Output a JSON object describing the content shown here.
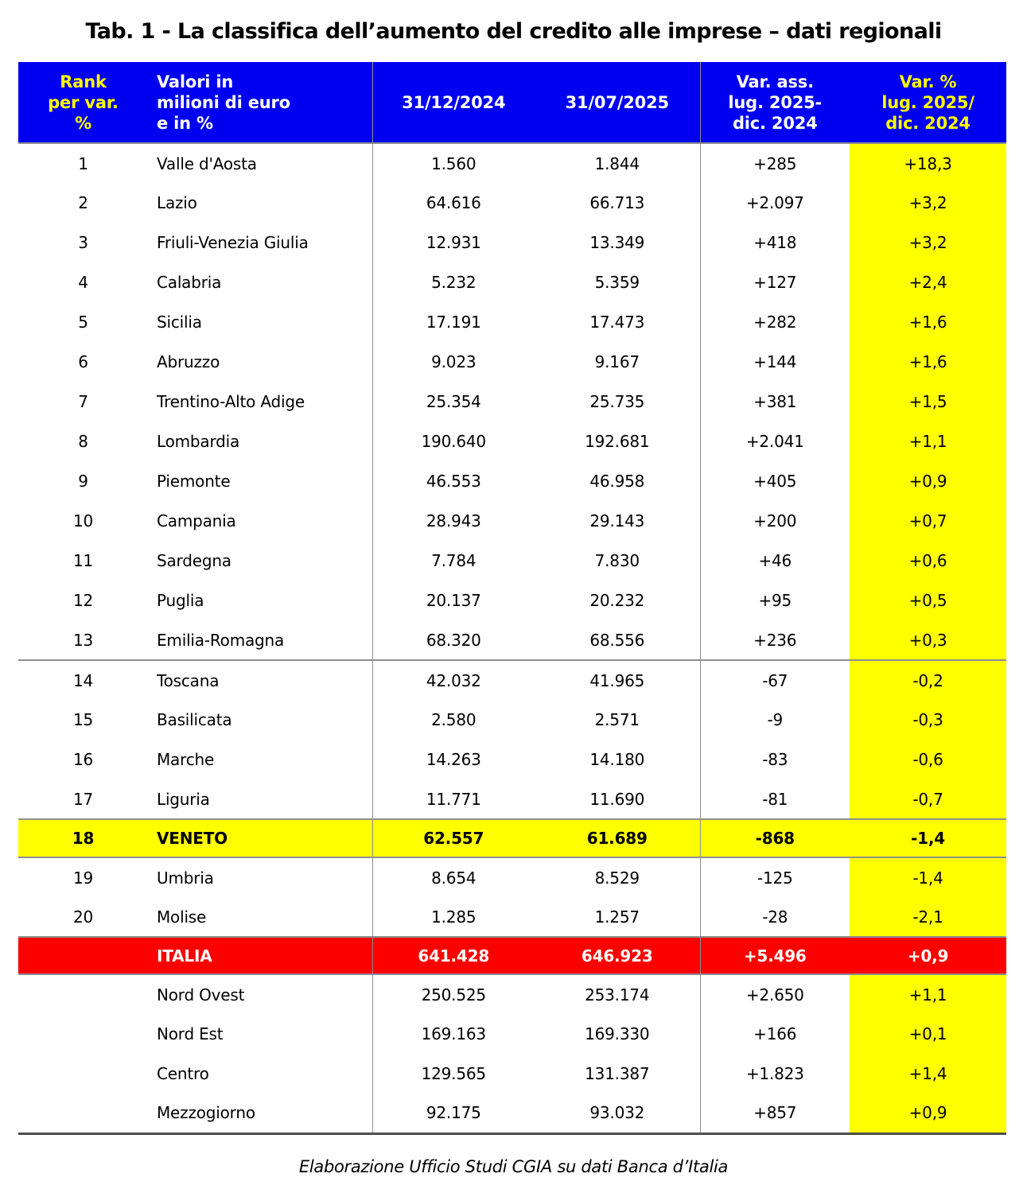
{
  "page": {
    "title": "Tab. 1 - La classifica dell’aumento del credito alle imprese – dati regionali",
    "source_note": "Elaborazione Ufficio Studi CGIA su dati Banca d’Italia"
  },
  "colors": {
    "header_blue": "#0000F0",
    "header_text_white": "#FFFFFF",
    "header_accent_yellow": "#FFFF00",
    "highlight_yellow": "#FFFF00",
    "total_red": "#FC0000",
    "border_gray": "#8F8F8F",
    "text_black": "#000000"
  },
  "table": {
    "header": {
      "rank_lines": [
        "Rank",
        "per var.",
        "%"
      ],
      "values_lines": [
        "Valori in",
        "milioni di euro",
        "e in %"
      ],
      "date1": "31/12/2024",
      "date2": "31/07/2025",
      "var_abs_lines": [
        "Var. ass.",
        "lug. 2025-",
        "dic. 2024"
      ],
      "var_pct_lines": [
        "Var. %",
        "lug. 2025/",
        "dic. 2024"
      ]
    }
  },
  "chart_data": {
    "type": "table",
    "title": "Tab. 1 - La classifica dell’aumento del credito alle imprese – dati regionali",
    "columns": [
      "Rank per var. %",
      "Valori in milioni di euro e in %",
      "31/12/2024",
      "31/07/2025",
      "Var. ass. lug. 2025-dic. 2024",
      "Var. % lug. 2025/dic. 2024"
    ],
    "rows": [
      {
        "rank": "1",
        "label": "Valle d'Aosta",
        "dec_2024": "1.560",
        "jul_2025": "1.844",
        "var_abs": "+285",
        "var_pct": "+18,3",
        "group": "region-positive"
      },
      {
        "rank": "2",
        "label": "Lazio",
        "dec_2024": "64.616",
        "jul_2025": "66.713",
        "var_abs": "+2.097",
        "var_pct": "+3,2",
        "group": "region-positive"
      },
      {
        "rank": "3",
        "label": "Friuli-Venezia Giulia",
        "dec_2024": "12.931",
        "jul_2025": "13.349",
        "var_abs": "+418",
        "var_pct": "+3,2",
        "group": "region-positive"
      },
      {
        "rank": "4",
        "label": "Calabria",
        "dec_2024": "5.232",
        "jul_2025": "5.359",
        "var_abs": "+127",
        "var_pct": "+2,4",
        "group": "region-positive"
      },
      {
        "rank": "5",
        "label": "Sicilia",
        "dec_2024": "17.191",
        "jul_2025": "17.473",
        "var_abs": "+282",
        "var_pct": "+1,6",
        "group": "region-positive"
      },
      {
        "rank": "6",
        "label": "Abruzzo",
        "dec_2024": "9.023",
        "jul_2025": "9.167",
        "var_abs": "+144",
        "var_pct": "+1,6",
        "group": "region-positive"
      },
      {
        "rank": "7",
        "label": "Trentino-Alto Adige",
        "dec_2024": "25.354",
        "jul_2025": "25.735",
        "var_abs": "+381",
        "var_pct": "+1,5",
        "group": "region-positive"
      },
      {
        "rank": "8",
        "label": "Lombardia",
        "dec_2024": "190.640",
        "jul_2025": "192.681",
        "var_abs": "+2.041",
        "var_pct": "+1,1",
        "group": "region-positive"
      },
      {
        "rank": "9",
        "label": "Piemonte",
        "dec_2024": "46.553",
        "jul_2025": "46.958",
        "var_abs": "+405",
        "var_pct": "+0,9",
        "group": "region-positive"
      },
      {
        "rank": "10",
        "label": "Campania",
        "dec_2024": "28.943",
        "jul_2025": "29.143",
        "var_abs": "+200",
        "var_pct": "+0,7",
        "group": "region-positive"
      },
      {
        "rank": "11",
        "label": "Sardegna",
        "dec_2024": "7.784",
        "jul_2025": "7.830",
        "var_abs": "+46",
        "var_pct": "+0,6",
        "group": "region-positive"
      },
      {
        "rank": "12",
        "label": "Puglia",
        "dec_2024": "20.137",
        "jul_2025": "20.232",
        "var_abs": "+95",
        "var_pct": "+0,5",
        "group": "region-positive"
      },
      {
        "rank": "13",
        "label": "Emilia-Romagna",
        "dec_2024": "68.320",
        "jul_2025": "68.556",
        "var_abs": "+236",
        "var_pct": "+0,3",
        "group": "region-positive"
      },
      {
        "rank": "14",
        "label": "Toscana",
        "dec_2024": "42.032",
        "jul_2025": "41.965",
        "var_abs": "-67",
        "var_pct": "-0,2",
        "group": "region-negative"
      },
      {
        "rank": "15",
        "label": "Basilicata",
        "dec_2024": "2.580",
        "jul_2025": "2.571",
        "var_abs": "-9",
        "var_pct": "-0,3",
        "group": "region-negative"
      },
      {
        "rank": "16",
        "label": "Marche",
        "dec_2024": "14.263",
        "jul_2025": "14.180",
        "var_abs": "-83",
        "var_pct": "-0,6",
        "group": "region-negative"
      },
      {
        "rank": "17",
        "label": "Liguria",
        "dec_2024": "11.771",
        "jul_2025": "11.690",
        "var_abs": "-81",
        "var_pct": "-0,7",
        "group": "region-negative"
      },
      {
        "rank": "18",
        "label": "VENETO",
        "dec_2024": "62.557",
        "jul_2025": "61.689",
        "var_abs": "-868",
        "var_pct": "-1,4",
        "group": "veneto-highlight"
      },
      {
        "rank": "19",
        "label": "Umbria",
        "dec_2024": "8.654",
        "jul_2025": "8.529",
        "var_abs": "-125",
        "var_pct": "-1,4",
        "group": "region-negative"
      },
      {
        "rank": "20",
        "label": "Molise",
        "dec_2024": "1.285",
        "jul_2025": "1.257",
        "var_abs": "-28",
        "var_pct": "-2,1",
        "group": "region-negative"
      },
      {
        "rank": "",
        "label": "ITALIA",
        "dec_2024": "641.428",
        "jul_2025": "646.923",
        "var_abs": "+5.496",
        "var_pct": "+0,9",
        "group": "italia-total"
      },
      {
        "rank": "",
        "label": "Nord Ovest",
        "dec_2024": "250.525",
        "jul_2025": "253.174",
        "var_abs": "+2.650",
        "var_pct": "+1,1",
        "group": "macro-area"
      },
      {
        "rank": "",
        "label": "Nord Est",
        "dec_2024": "169.163",
        "jul_2025": "169.330",
        "var_abs": "+166",
        "var_pct": "+0,1",
        "group": "macro-area"
      },
      {
        "rank": "",
        "label": "Centro",
        "dec_2024": "129.565",
        "jul_2025": "131.387",
        "var_abs": "+1.823",
        "var_pct": "+1,4",
        "group": "macro-area"
      },
      {
        "rank": "",
        "label": "Mezzogiorno",
        "dec_2024": "92.175",
        "jul_2025": "93.032",
        "var_abs": "+857",
        "var_pct": "+0,9",
        "group": "macro-area"
      }
    ],
    "layout_hints": {
      "var_pct_column_background": "yellow",
      "veneto_row_background": "yellow",
      "italia_row_background": "red",
      "separator_after_rank": 13
    }
  }
}
